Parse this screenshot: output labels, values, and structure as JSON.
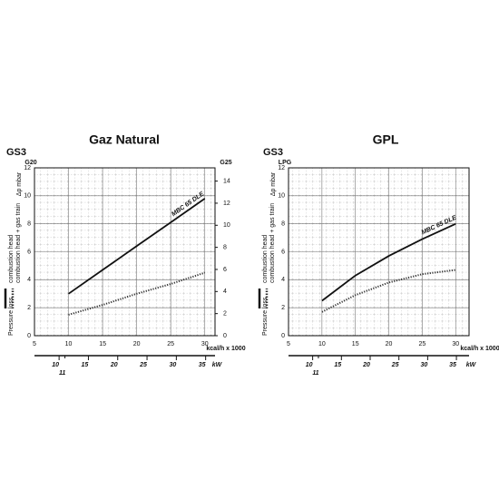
{
  "chart_data": [
    {
      "type": "line",
      "title": "Gaz Natural",
      "model": "GS3",
      "y_label": "Δp mbar",
      "y_top_label": "G20",
      "y2_top_label": "G25",
      "x_label": "kcal/h x 1000",
      "x2_label": "kW",
      "legend_title": "Pressure loss",
      "curve_label": "MBC 65 DLE",
      "x": [
        10,
        15,
        20,
        25,
        30
      ],
      "series": [
        {
          "name": "combustion head + gas train",
          "color": "#111111",
          "style": "solid",
          "values": [
            3.0,
            4.7,
            6.4,
            8.1,
            9.8
          ]
        },
        {
          "name": "combustion head",
          "color": "#333333",
          "style": "dotted",
          "values": [
            1.5,
            2.2,
            3.0,
            3.7,
            4.5
          ]
        }
      ],
      "xlim": [
        5,
        31.5
      ],
      "xticks": [
        5,
        10,
        15,
        20,
        25,
        30
      ],
      "ylim": [
        0,
        12
      ],
      "yticks": [
        0,
        2,
        4,
        6,
        8,
        10,
        12
      ],
      "y2lim": [
        0,
        15.2
      ],
      "y2ticks": [
        0,
        2,
        4,
        6,
        8,
        10,
        12,
        14
      ],
      "x2lim": [
        5.8,
        36.6
      ],
      "x2ticks": [
        10,
        15,
        20,
        25,
        30,
        35
      ],
      "x2_extra_ticks": [
        11
      ],
      "grid": true
    },
    {
      "type": "line",
      "title": "GPL",
      "model": "GS3",
      "y_label": "Δp mbar",
      "y_top_label": "LPG",
      "x_label": "kcal/h x 1000",
      "x2_label": "kW",
      "legend_title": "Pressure loss",
      "curve_label": "MBC 65 DLE",
      "x": [
        10,
        15,
        20,
        25,
        30
      ],
      "series": [
        {
          "name": "combustion head + gas train",
          "color": "#111111",
          "style": "solid",
          "values": [
            2.5,
            4.3,
            5.7,
            6.9,
            8.0
          ]
        },
        {
          "name": "combustion head",
          "color": "#333333",
          "style": "dotted",
          "values": [
            1.7,
            2.9,
            3.8,
            4.4,
            4.7
          ]
        }
      ],
      "xlim": [
        5,
        32
      ],
      "xticks": [
        5,
        10,
        15,
        20,
        25,
        30
      ],
      "ylim": [
        0,
        12
      ],
      "yticks": [
        0,
        2,
        4,
        6,
        8,
        10,
        12
      ],
      "x2lim": [
        5.8,
        37.2
      ],
      "x2ticks": [
        10,
        15,
        20,
        25,
        30,
        35
      ],
      "x2_extra_ticks": [
        11
      ],
      "grid": true
    }
  ]
}
